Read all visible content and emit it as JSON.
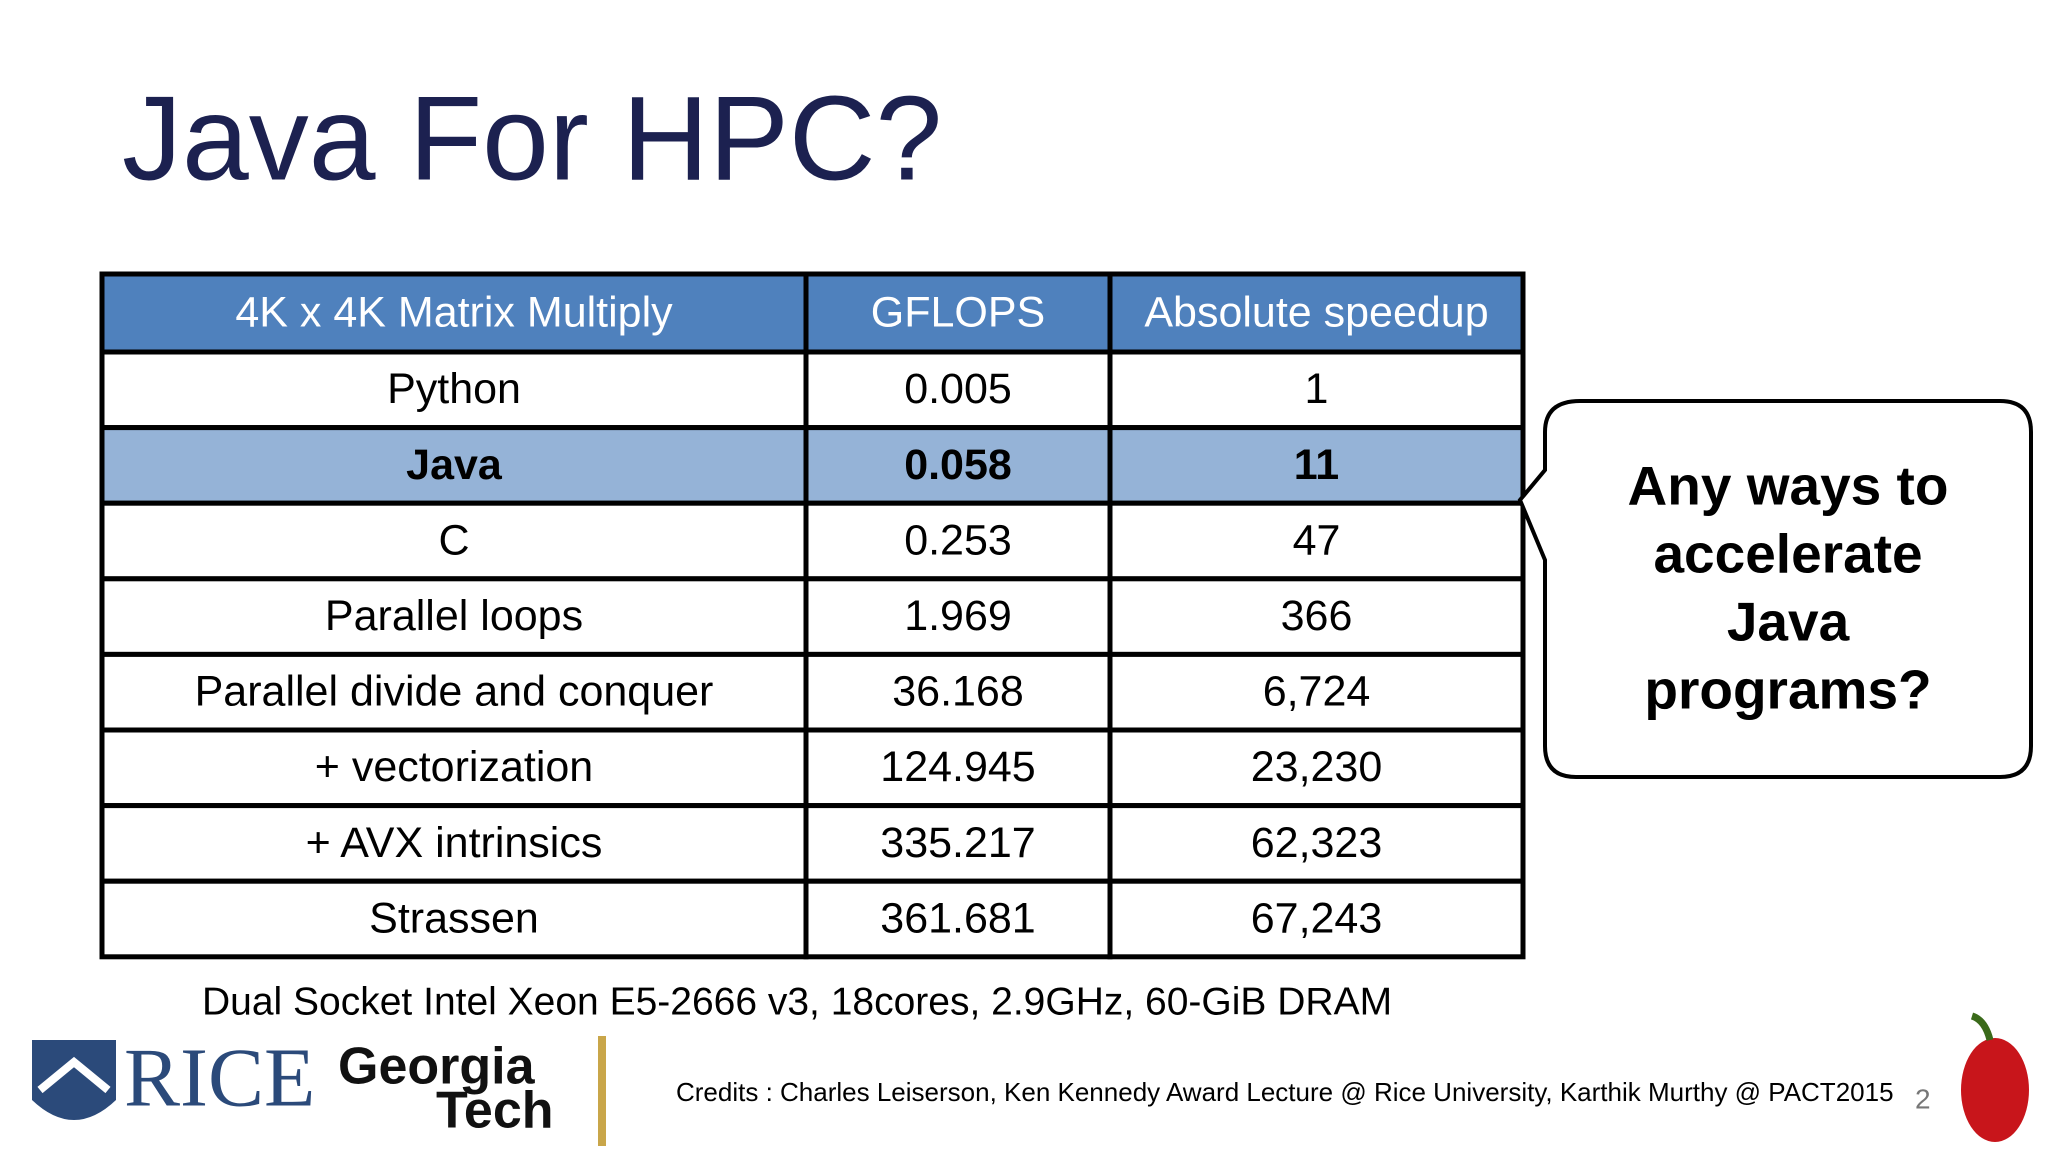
{
  "header": {
    "title": "Java For HPC?"
  },
  "table": {
    "header": [
      "4K x 4K Matrix Multiply",
      "GFLOPS",
      "Absolute speedup"
    ],
    "rows": [
      [
        "Python",
        "0.005",
        "1"
      ],
      [
        "Java",
        "0.058",
        "11"
      ],
      [
        "C",
        "0.253",
        "47"
      ],
      [
        "Parallel loops",
        "1.969",
        "366"
      ],
      [
        "Parallel divide and conquer",
        "36.168",
        "6,724"
      ],
      [
        "+ vectorization",
        "124.945",
        "23,230"
      ],
      [
        "+ AVX intrinsics",
        "335.217",
        "62,323"
      ],
      [
        "Strassen",
        "361.681",
        "67,243"
      ]
    ],
    "highlight_row": 1,
    "header_color": "#4f81bd",
    "highlight_color": "#95b3d7"
  },
  "callout": {
    "lines": [
      "Any ways to",
      "accelerate",
      "Java",
      "programs?"
    ]
  },
  "footnote": "Dual Socket Intel Xeon E5-2666 v3,  18cores, 2.9GHz, 60-GiB DRAM",
  "logos": {
    "rice": "RICE",
    "georgia": "Georgia",
    "tech": "Tech"
  },
  "credits": "Credits : Charles Leiserson, Ken Kennedy Award Lecture @ Rice University, Karthik Murthy @ PACT2015",
  "page_number": "2"
}
